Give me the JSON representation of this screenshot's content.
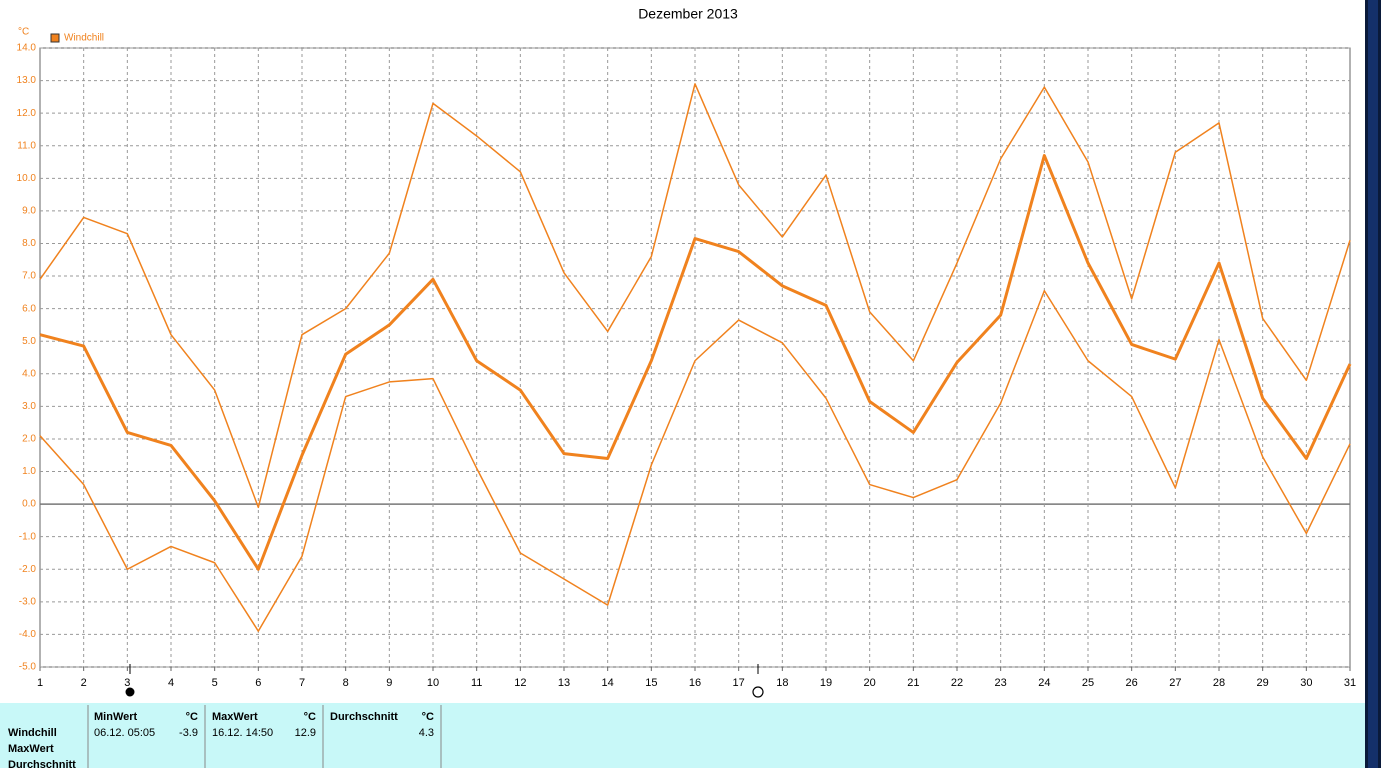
{
  "chart_data": {
    "type": "line",
    "title": "Dezember 2013",
    "y_unit": "°C",
    "categories": [
      "1",
      "2",
      "3",
      "4",
      "5",
      "6",
      "7",
      "8",
      "9",
      "10",
      "11",
      "12",
      "13",
      "14",
      "15",
      "16",
      "17",
      "18",
      "19",
      "20",
      "21",
      "22",
      "23",
      "24",
      "25",
      "26",
      "27",
      "28",
      "29",
      "30",
      "31"
    ],
    "series": [
      {
        "name": "Windchill",
        "color": "#f0821e",
        "line_width": 3,
        "values": [
          5.2,
          4.85,
          2.2,
          1.8,
          0.1,
          -2.0,
          1.5,
          4.6,
          5.5,
          6.9,
          4.4,
          3.5,
          1.55,
          1.4,
          4.4,
          8.15,
          7.75,
          6.7,
          6.1,
          3.15,
          2.2,
          4.35,
          5.8,
          10.7,
          7.4,
          4.9,
          4.45,
          7.4,
          3.25,
          1.4,
          4.3
        ]
      },
      {
        "color": "#f0821e",
        "line_width": 1.5,
        "values": [
          6.9,
          8.8,
          8.3,
          5.2,
          3.5,
          -0.1,
          5.2,
          6.0,
          7.7,
          12.3,
          11.3,
          10.2,
          7.1,
          5.3,
          7.6,
          12.9,
          9.8,
          8.2,
          10.1,
          5.9,
          4.4,
          7.4,
          10.6,
          12.8,
          10.5,
          6.3,
          10.8,
          11.7,
          5.7,
          3.8,
          8.1
        ]
      },
      {
        "color": "#f0821e",
        "line_width": 1.5,
        "values": [
          2.1,
          0.6,
          -2.0,
          -1.3,
          -1.8,
          -3.9,
          -1.6,
          3.3,
          3.75,
          3.85,
          1.1,
          -1.5,
          -2.3,
          -3.1,
          1.2,
          4.4,
          5.65,
          4.95,
          3.25,
          0.6,
          0.2,
          0.75,
          3.1,
          6.55,
          4.4,
          3.3,
          0.5,
          5.05,
          1.45,
          -0.9,
          1.85
        ]
      }
    ],
    "ylim": [
      -5,
      14
    ],
    "yticks": [
      {
        "value": 14,
        "label": "14.0"
      },
      {
        "value": 13,
        "label": "13.0"
      },
      {
        "value": 12,
        "label": "12.0"
      },
      {
        "value": 11,
        "label": "11.0"
      },
      {
        "value": 10,
        "label": "10.0"
      },
      {
        "value": 9,
        "label": "9.0"
      },
      {
        "value": 8,
        "label": "8.0"
      },
      {
        "value": 7,
        "label": "7.0"
      },
      {
        "value": 6,
        "label": "6.0"
      },
      {
        "value": 5,
        "label": "5.0"
      },
      {
        "value": 4,
        "label": "4.0"
      },
      {
        "value": 3,
        "label": "3.0"
      },
      {
        "value": 2,
        "label": "2.0"
      },
      {
        "value": 1,
        "label": "1.0"
      },
      {
        "value": 0,
        "label": "0.0"
      },
      {
        "value": -1,
        "label": "-1.0"
      },
      {
        "value": -2,
        "label": "-2.0"
      },
      {
        "value": -3,
        "label": "-3.0"
      },
      {
        "value": -4,
        "label": "-4.0"
      },
      {
        "value": -5,
        "label": "-5.0"
      }
    ],
    "grid": true,
    "legend": "top-left"
  },
  "table": {
    "row_labels": [
      "Windchill",
      "MaxWert",
      "Durchschnitt"
    ],
    "columns": [
      {
        "header": "MinWert",
        "unit": "°C",
        "time": "06.12.  05:05",
        "value": -3.9
      },
      {
        "header": "MaxWert",
        "unit": "°C",
        "time": "16.12.  14:50",
        "value": 12.9
      },
      {
        "header": "Durchschnitt",
        "unit": "°C",
        "value": 4.3
      }
    ]
  }
}
